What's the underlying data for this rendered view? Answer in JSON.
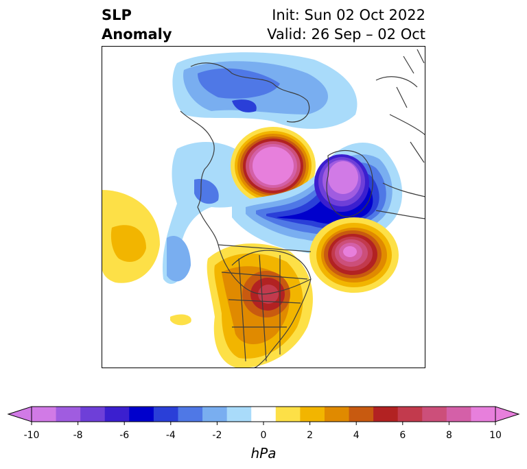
{
  "title": {
    "left_line1": "SLP",
    "left_line2": "Anomaly",
    "right_line1": "Init: Sun 02 Oct 2022",
    "right_line2": "Valid: 26 Sep – 02 Oct"
  },
  "colorbar": {
    "unit_label": "hPa",
    "ticks": [
      "-10",
      "-8",
      "-6",
      "-4",
      "-2",
      "0",
      "2",
      "4",
      "6",
      "8",
      "10"
    ],
    "colors": [
      "#d17ae6",
      "#a05ce0",
      "#6e3fd8",
      "#3b1fcf",
      "#0000cc",
      "#2a3fd8",
      "#4f78e6",
      "#79aef0",
      "#a9dbfa",
      "#ffffff",
      "#fde047",
      "#f2b500",
      "#e08a00",
      "#c85a10",
      "#b22222",
      "#c23a4d",
      "#cc4f7a",
      "#d460a8",
      "#e77fdc"
    ],
    "min": -10,
    "max": 10,
    "step": 1
  },
  "map": {
    "region": "North America / North Atlantic / Arctic (polar stereographic)"
  }
}
